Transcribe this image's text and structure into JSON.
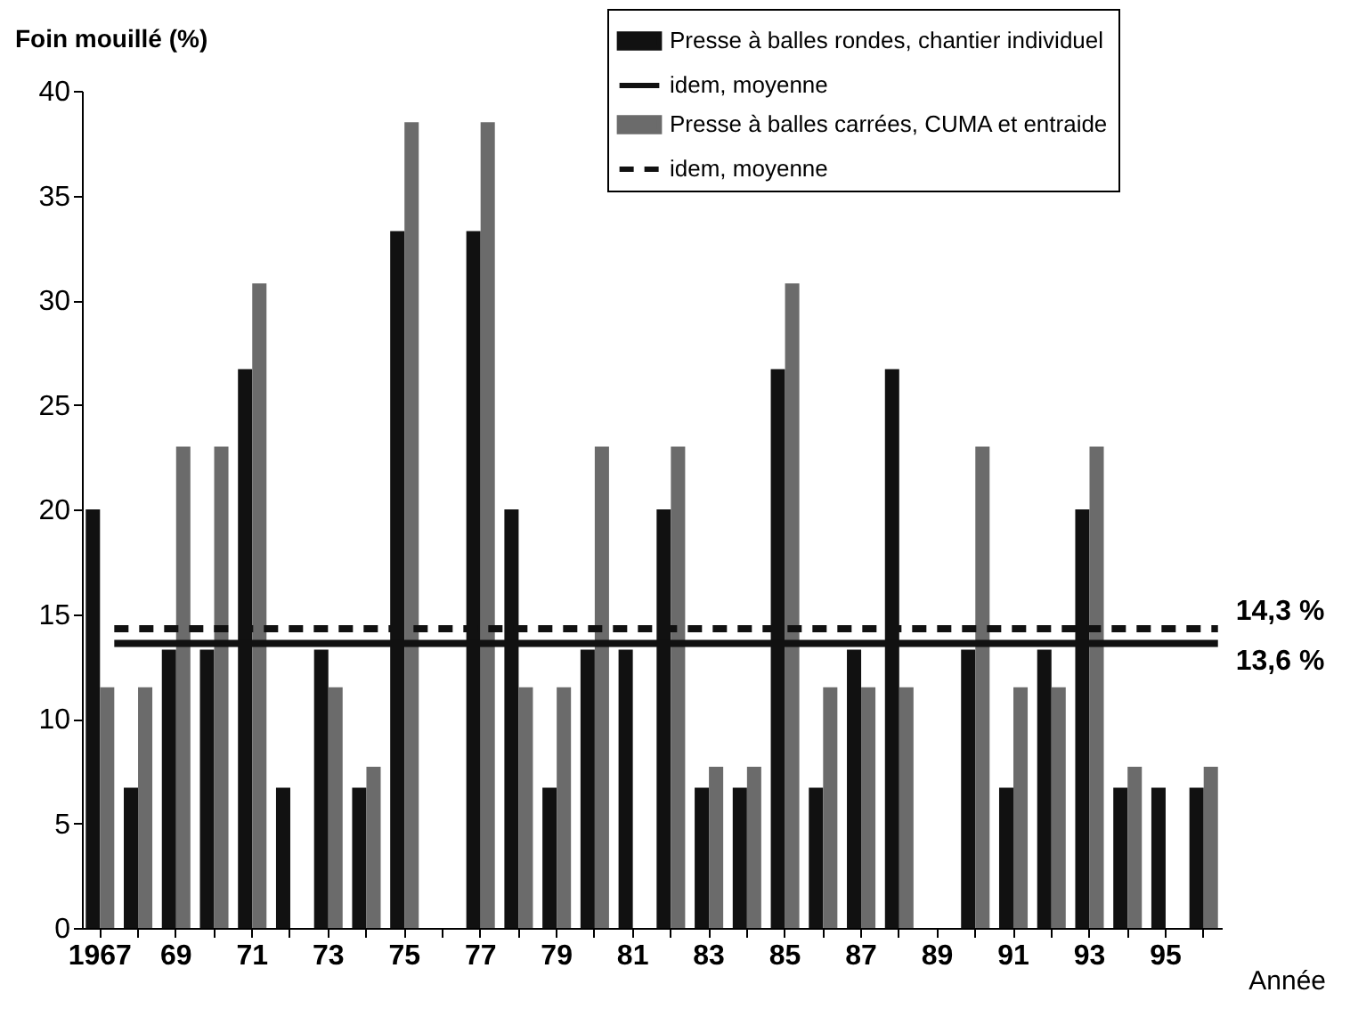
{
  "chart_data": {
    "type": "bar",
    "xlabel": "Année",
    "ylabel": "Foin mouillé (%)",
    "categories": [
      "1967",
      null,
      "69",
      null,
      "71",
      null,
      "73",
      null,
      "75",
      null,
      "77",
      null,
      "79",
      null,
      "81",
      null,
      "83",
      null,
      "85",
      null,
      "87",
      null,
      "89",
      null,
      "91",
      null,
      "93",
      null,
      "95",
      null
    ],
    "series": [
      {
        "name": "Presse à balles rondes, chantier individuel",
        "color": "#111111",
        "values": [
          20,
          6.7,
          13.3,
          13.3,
          26.7,
          6.7,
          13.3,
          6.7,
          33.3,
          0,
          33.3,
          20,
          6.7,
          13.3,
          13.3,
          20,
          6.7,
          6.7,
          26.7,
          6.7,
          13.3,
          26.7,
          0,
          13.3,
          6.7,
          13.3,
          20,
          6.7,
          6.7,
          6.7
        ]
      },
      {
        "name": "idem, moyenne",
        "type": "line",
        "line_style": "solid",
        "color": "#111111",
        "values": [
          13.6,
          13.6,
          13.6,
          13.6,
          13.6,
          13.6,
          13.6,
          13.6,
          13.6,
          13.6,
          13.6,
          13.6,
          13.6,
          13.6,
          13.6,
          13.6,
          13.6,
          13.6,
          13.6,
          13.6,
          13.6,
          13.6,
          13.6,
          13.6,
          13.6,
          13.6,
          13.6,
          13.6,
          13.6,
          13.6
        ],
        "value_labels": [
          null,
          null,
          null,
          null,
          null,
          null,
          null,
          null,
          null,
          null,
          null,
          null,
          null,
          null,
          null,
          null,
          null,
          null,
          null,
          null,
          null,
          null,
          null,
          null,
          null,
          null,
          null,
          null,
          null,
          "13,6 %"
        ]
      },
      {
        "name": "Presse à balles carrées, CUMA et entraide",
        "color": "#6b6b6b",
        "values": [
          11.5,
          11.5,
          23,
          23,
          30.8,
          0,
          11.5,
          7.7,
          38.5,
          0,
          38.5,
          11.5,
          11.5,
          23,
          0,
          23,
          7.7,
          7.7,
          30.8,
          11.5,
          11.5,
          11.5,
          0,
          23,
          11.5,
          11.5,
          23,
          7.7,
          0,
          7.7
        ]
      },
      {
        "name": "idem, moyenne",
        "type": "line",
        "line_style": "dashed",
        "color": "#111111",
        "values": [
          14.3,
          14.3,
          14.3,
          14.3,
          14.3,
          14.3,
          14.3,
          14.3,
          14.3,
          14.3,
          14.3,
          14.3,
          14.3,
          14.3,
          14.3,
          14.3,
          14.3,
          14.3,
          14.3,
          14.3,
          14.3,
          14.3,
          14.3,
          14.3,
          14.3,
          14.3,
          14.3,
          14.3,
          14.3,
          14.3
        ],
        "value_labels": [
          null,
          null,
          null,
          null,
          null,
          null,
          null,
          null,
          null,
          null,
          null,
          null,
          null,
          null,
          null,
          null,
          null,
          null,
          null,
          null,
          null,
          null,
          null,
          null,
          null,
          null,
          null,
          null,
          null,
          "14,3 %"
        ]
      }
    ],
    "ylim": [
      0,
      40
    ],
    "yticks": [
      0,
      5,
      10,
      15,
      20,
      25,
      30,
      35,
      40
    ],
    "grid": false,
    "legend": "top right"
  }
}
